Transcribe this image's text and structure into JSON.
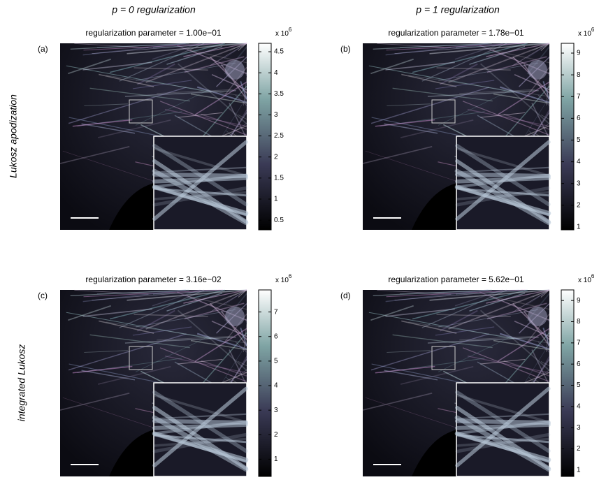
{
  "column_headers": [
    "p = 0 regularization",
    "p = 1 regularization"
  ],
  "row_labels": [
    "Lukosz apodization",
    "integrated Lukosz"
  ],
  "panels": [
    {
      "label": "(a)",
      "title": "regularization parameter = 1.00e−01",
      "colorbar": {
        "multiplier": "x 10",
        "exponent": "6",
        "ylim": [
          0.27,
          4.7
        ],
        "yticks": [
          0.5,
          1,
          1.5,
          2,
          2.5,
          3,
          3.5,
          4,
          4.5
        ]
      }
    },
    {
      "label": "(b)",
      "title": "regularization parameter = 1.78e−01",
      "colorbar": {
        "multiplier": "x 10",
        "exponent": "6",
        "ylim": [
          0.87,
          9.45
        ],
        "yticks": [
          1,
          2,
          3,
          4,
          5,
          6,
          7,
          8,
          9
        ]
      }
    },
    {
      "label": "(c)",
      "title": "regularization parameter = 3.16e−02",
      "colorbar": {
        "multiplier": "x 10",
        "exponent": "6",
        "ylim": [
          0.3,
          7.9
        ],
        "yticks": [
          1,
          2,
          3,
          4,
          5,
          6,
          7
        ]
      }
    },
    {
      "label": "(d)",
      "title": "regularization parameter = 5.62e−01",
      "colorbar": {
        "multiplier": "x 10",
        "exponent": "6",
        "ylim": [
          0.7,
          9.5
        ],
        "yticks": [
          1,
          2,
          3,
          4,
          5,
          6,
          7,
          8,
          9
        ]
      }
    }
  ]
}
